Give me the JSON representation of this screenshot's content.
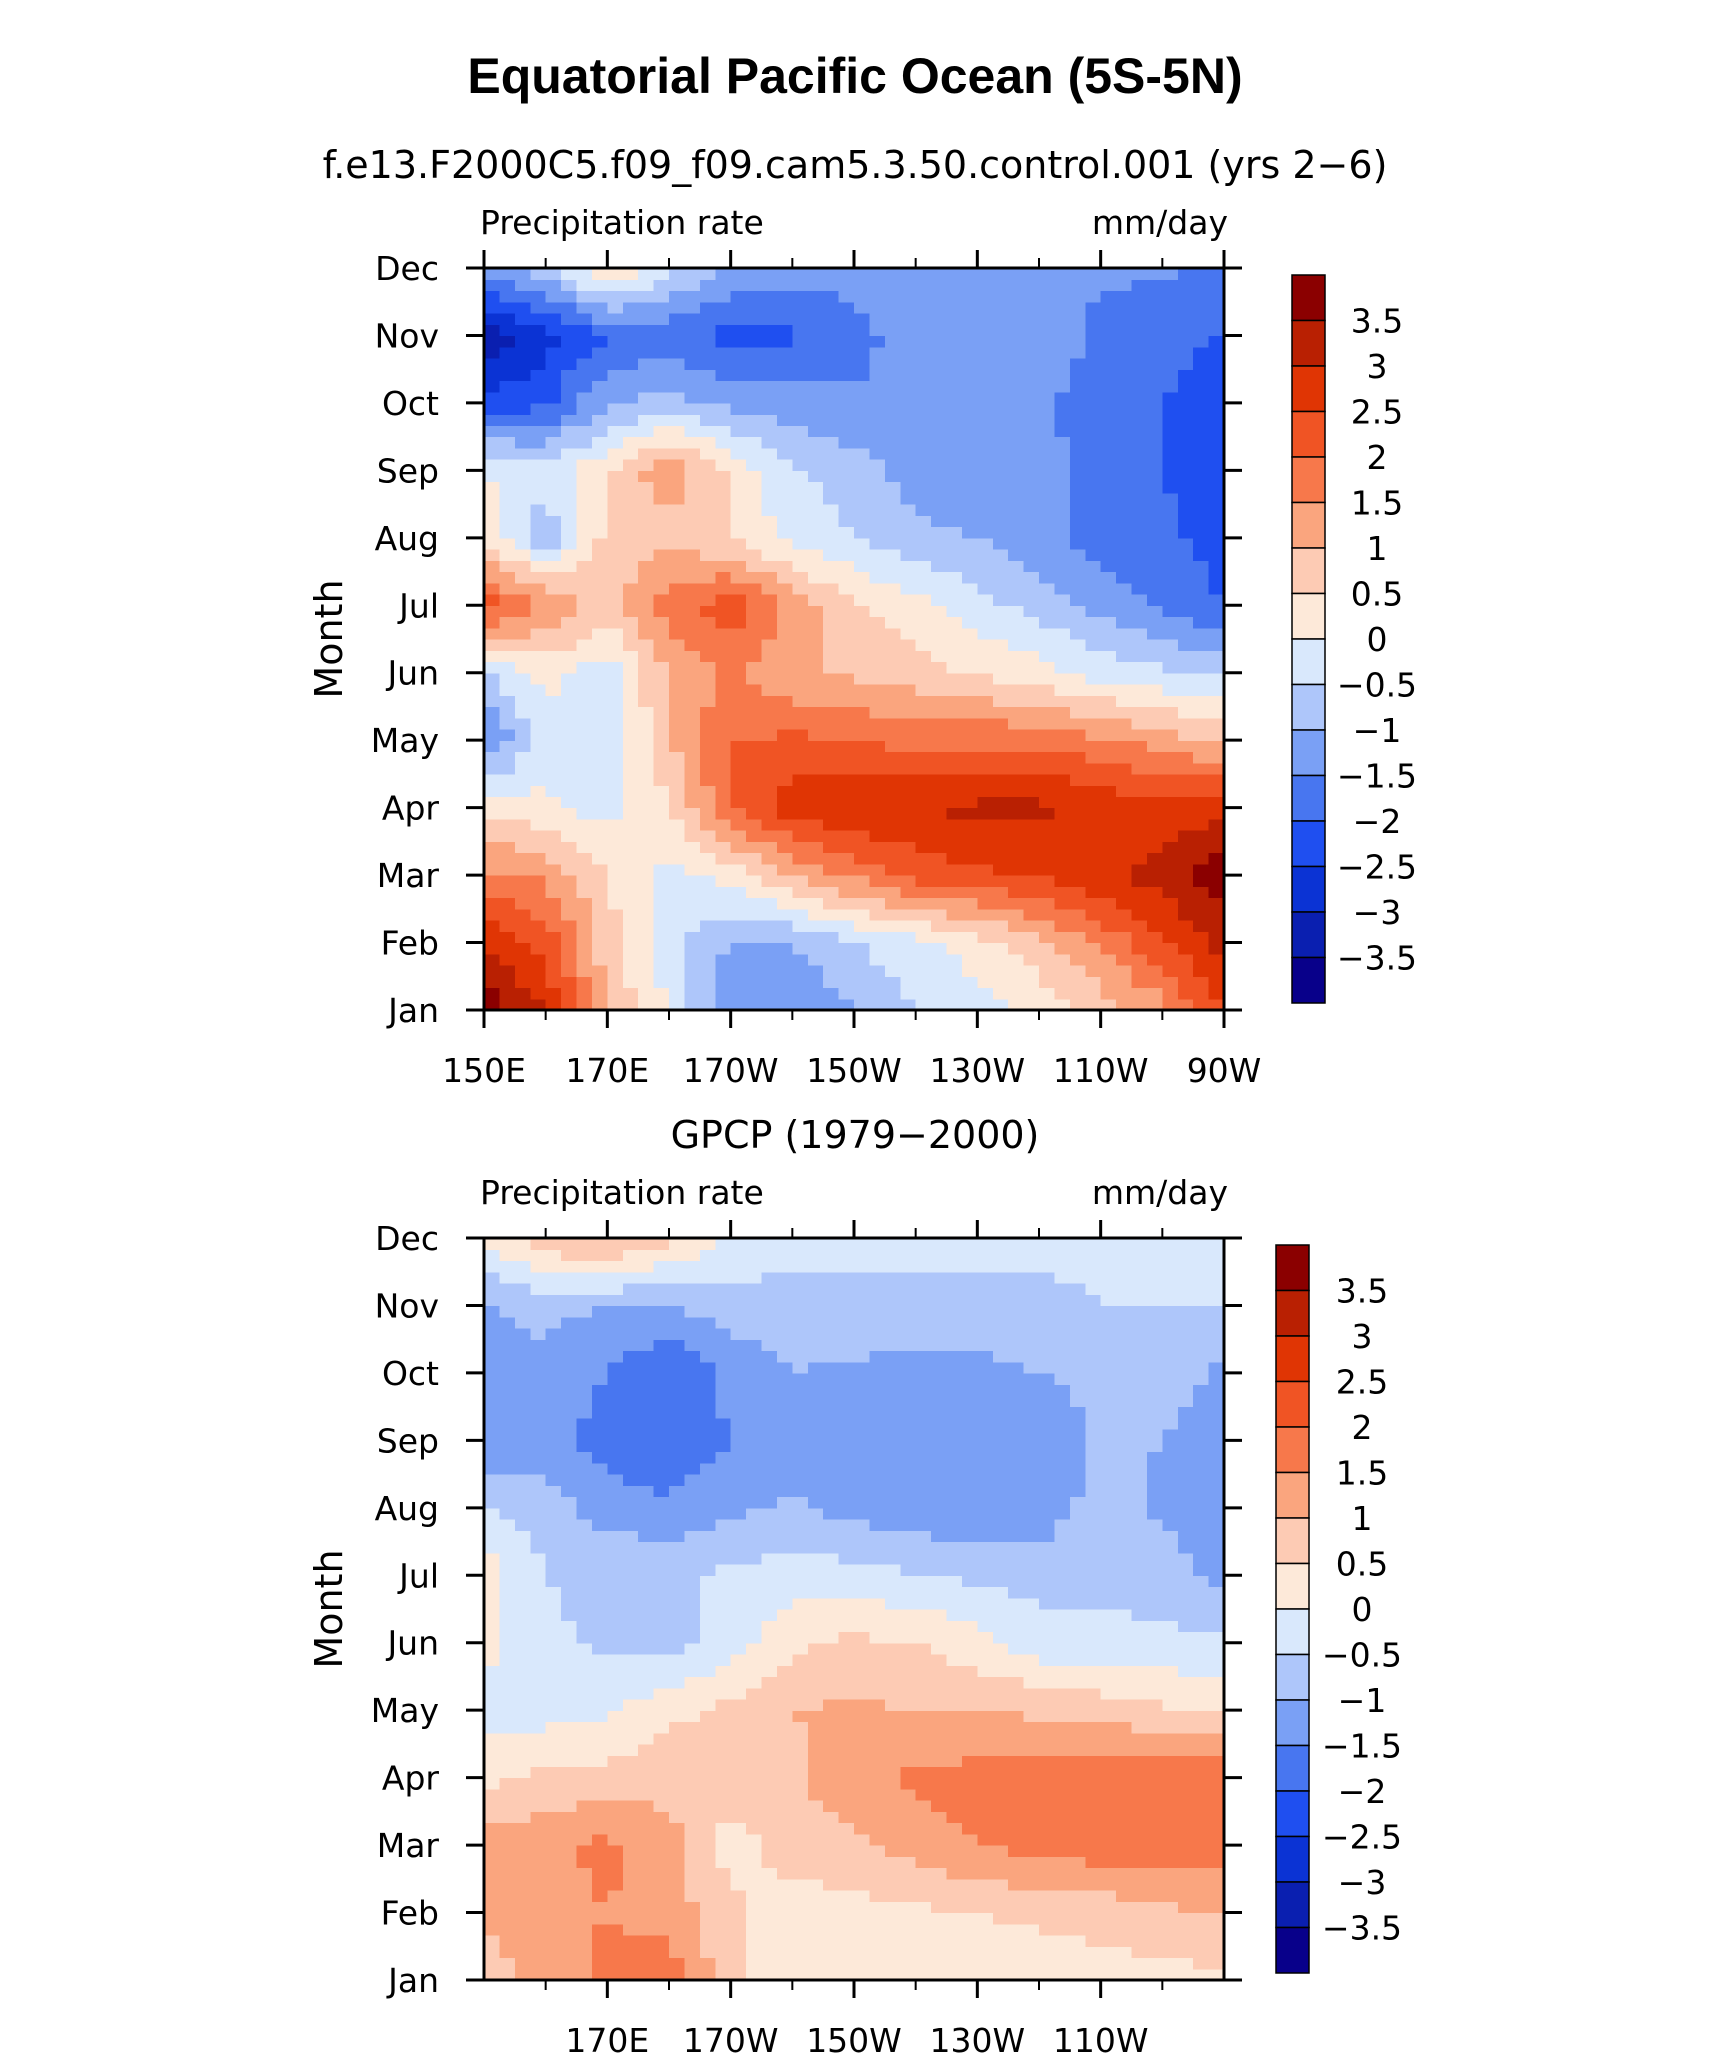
{
  "figure": {
    "title": "Equatorial Pacific Ocean (5S-5N)"
  },
  "chart_data": [
    {
      "type": "heatmap",
      "subtitle": "f.e13.F2000C5.f09_f09.cam5.3.50.control.001 (yrs 2−6)",
      "left_string": "Precipitation rate",
      "right_string": "mm/day",
      "ylabel": "Month",
      "xlabel": "",
      "x_tick_labels": [
        "150E",
        "170E",
        "170W",
        "150W",
        "130W",
        "110W",
        "90W"
      ],
      "y_tick_labels": [
        "Jan",
        "Feb",
        "Mar",
        "Apr",
        "May",
        "Jun",
        "Jul",
        "Aug",
        "Sep",
        "Oct",
        "Nov",
        "Dec"
      ],
      "x": [
        150,
        160,
        170,
        180,
        190,
        200,
        210,
        220,
        230,
        240,
        250,
        260,
        270
      ],
      "y": [
        "Jan",
        "Feb",
        "Mar",
        "Apr",
        "May",
        "Jun",
        "Jul",
        "Aug",
        "Sep",
        "Oct",
        "Nov",
        "Dec"
      ],
      "values": [
        [
          3.8,
          3.0,
          1.0,
          0.0,
          -1.5,
          -1.5,
          -1.0,
          -0.5,
          -0.3,
          0.2,
          0.7,
          1.3,
          2.6
        ],
        [
          3.0,
          2.3,
          0.7,
          -0.3,
          -1.0,
          -1.0,
          -0.5,
          -0.2,
          0.3,
          0.8,
          1.6,
          2.4,
          3.2
        ],
        [
          1.6,
          1.4,
          0.5,
          -0.2,
          0.2,
          1.0,
          1.6,
          2.2,
          2.4,
          2.6,
          2.9,
          3.2,
          3.8
        ],
        [
          0.4,
          0.1,
          -0.2,
          0.5,
          2.0,
          2.8,
          3.0,
          3.0,
          3.1,
          3.1,
          2.9,
          2.6,
          2.9
        ],
        [
          -1.6,
          -0.2,
          -0.4,
          0.9,
          2.0,
          2.1,
          2.0,
          1.8,
          1.9,
          1.9,
          1.6,
          1.3,
          0.8
        ],
        [
          -0.6,
          0.2,
          -0.3,
          1.1,
          1.6,
          1.1,
          0.9,
          0.7,
          0.4,
          0.2,
          -0.2,
          -0.4,
          -0.6
        ],
        [
          2.3,
          1.5,
          0.8,
          1.8,
          2.3,
          1.3,
          0.6,
          0.2,
          -0.3,
          -0.7,
          -1.2,
          -1.6,
          -2.0
        ],
        [
          0.4,
          -0.9,
          0.7,
          0.8,
          0.5,
          -0.2,
          -0.5,
          -0.9,
          -1.0,
          -1.3,
          -1.8,
          -1.9,
          -2.2
        ],
        [
          0.0,
          -0.3,
          0.4,
          1.4,
          0.4,
          -0.4,
          -0.8,
          -1.2,
          -1.3,
          -1.3,
          -1.7,
          -2.0,
          -2.3
        ],
        [
          -2.3,
          -2.1,
          -1.0,
          -0.8,
          -1.1,
          -1.3,
          -1.4,
          -1.5,
          -1.4,
          -1.4,
          -1.8,
          -2.0,
          -2.2
        ],
        [
          -3.4,
          -2.7,
          -2.0,
          -1.9,
          -2.2,
          -2.1,
          -1.7,
          -1.2,
          -1.2,
          -1.0,
          -1.7,
          -1.9,
          -2.0
        ],
        [
          -1.4,
          -0.7,
          0.6,
          -0.3,
          -1.0,
          -1.2,
          -1.3,
          -1.3,
          -1.3,
          -1.3,
          -1.4,
          -1.4,
          -1.6
        ]
      ],
      "levels": [
        -3.5,
        -3,
        -2.5,
        -2,
        -1.5,
        -1,
        -0.5,
        0,
        0.5,
        1,
        1.5,
        2,
        2.5,
        3,
        3.5
      ],
      "colorbar_labels": [
        "3.5",
        "3",
        "2.5",
        "2",
        "1.5",
        "1",
        "0.5",
        "0",
        "−0.5",
        "−1",
        "−1.5",
        "−2",
        "−2.5",
        "−3",
        "−3.5"
      ],
      "colors": [
        "#08008a",
        "#0a1fb0",
        "#0b33d4",
        "#1f4ff0",
        "#4876f0",
        "#7aa0f5",
        "#aec6fa",
        "#d9e8fc",
        "#fde9d9",
        "#fdcbb4",
        "#faa57e",
        "#f7784b",
        "#f05424",
        "#e03504",
        "#b92002",
        "#8b0000"
      ]
    },
    {
      "type": "heatmap",
      "subtitle": "GPCP (1979−2000)",
      "left_string": "Precipitation rate",
      "right_string": "mm/day",
      "ylabel": "Month",
      "xlabel": "",
      "x_tick_labels": [
        "170E",
        "170W",
        "150W",
        "130W",
        "110W"
      ],
      "y_tick_labels": [
        "Jan",
        "Feb",
        "Mar",
        "Apr",
        "May",
        "Jun",
        "Jul",
        "Aug",
        "Sep",
        "Oct",
        "Nov",
        "Dec"
      ],
      "x": [
        150,
        160,
        170,
        180,
        190,
        200,
        210,
        220,
        230,
        240,
        250,
        260,
        270
      ],
      "y": [
        "Jan",
        "Feb",
        "Mar",
        "Apr",
        "May",
        "Jun",
        "Jul",
        "Aug",
        "Sep",
        "Oct",
        "Nov",
        "Dec"
      ],
      "values": [
        [
          0.8,
          1.2,
          1.6,
          1.8,
          0.6,
          0.2,
          0.1,
          0.1,
          0.2,
          0.2,
          0.3,
          0.3,
          0.4
        ],
        [
          1.0,
          1.4,
          1.5,
          1.3,
          0.6,
          0.3,
          0.3,
          0.4,
          0.5,
          0.6,
          0.7,
          0.9,
          1.0
        ],
        [
          1.2,
          1.4,
          1.6,
          1.2,
          0.3,
          0.7,
          0.9,
          1.2,
          1.5,
          1.7,
          1.8,
          1.9,
          1.7
        ],
        [
          0.4,
          0.6,
          0.7,
          0.8,
          0.7,
          0.9,
          1.4,
          1.6,
          1.7,
          1.8,
          1.8,
          1.9,
          1.9
        ],
        [
          -0.3,
          -0.2,
          -0.1,
          0.4,
          0.6,
          1.0,
          1.1,
          1.0,
          1.0,
          0.9,
          0.8,
          0.6,
          0.4
        ],
        [
          0.2,
          -0.4,
          -0.6,
          -0.7,
          -0.2,
          0.4,
          0.6,
          0.5,
          0.2,
          -0.3,
          -0.4,
          -0.4,
          -0.4
        ],
        [
          0.3,
          -0.5,
          -0.6,
          -0.6,
          -0.4,
          -0.3,
          -0.3,
          -0.5,
          -0.6,
          -0.7,
          -0.6,
          -0.7,
          -1.2
        ],
        [
          -0.5,
          -0.8,
          -1.2,
          -1.4,
          -1.1,
          -0.9,
          -1.2,
          -1.3,
          -1.4,
          -1.3,
          -0.8,
          -1.1,
          -1.3
        ],
        [
          -1.4,
          -1.2,
          -1.8,
          -1.9,
          -1.5,
          -1.3,
          -1.3,
          -1.4,
          -1.4,
          -1.3,
          -0.9,
          -1.0,
          -1.2
        ],
        [
          -1.2,
          -1.1,
          -1.5,
          -2.0,
          -1.3,
          -1.0,
          -1.1,
          -1.2,
          -1.2,
          -1.0,
          -0.9,
          -0.8,
          -1.1
        ],
        [
          -1.0,
          -0.9,
          -1.0,
          -1.0,
          -0.8,
          -0.7,
          -0.6,
          -0.6,
          -0.6,
          -0.6,
          -0.5,
          -0.5,
          -0.5
        ],
        [
          0.0,
          0.9,
          1.2,
          0.6,
          0.0,
          -0.3,
          -0.4,
          -0.4,
          -0.4,
          -0.4,
          -0.4,
          -0.4,
          -0.5
        ]
      ],
      "levels": [
        -3.5,
        -3,
        -2.5,
        -2,
        -1.5,
        -1,
        -0.5,
        0,
        0.5,
        1,
        1.5,
        2,
        2.5,
        3,
        3.5
      ],
      "colorbar_labels": [
        "3.5",
        "3",
        "2.5",
        "2",
        "1.5",
        "1",
        "0.5",
        "0",
        "−0.5",
        "−1",
        "−1.5",
        "−2",
        "−2.5",
        "−3",
        "−3.5"
      ],
      "colors": [
        "#08008a",
        "#0a1fb0",
        "#0b33d4",
        "#1f4ff0",
        "#4876f0",
        "#7aa0f5",
        "#aec6fa",
        "#d9e8fc",
        "#fde9d9",
        "#fdcbb4",
        "#faa57e",
        "#f7784b",
        "#f05424",
        "#e03504",
        "#b92002",
        "#8b0000"
      ]
    }
  ]
}
